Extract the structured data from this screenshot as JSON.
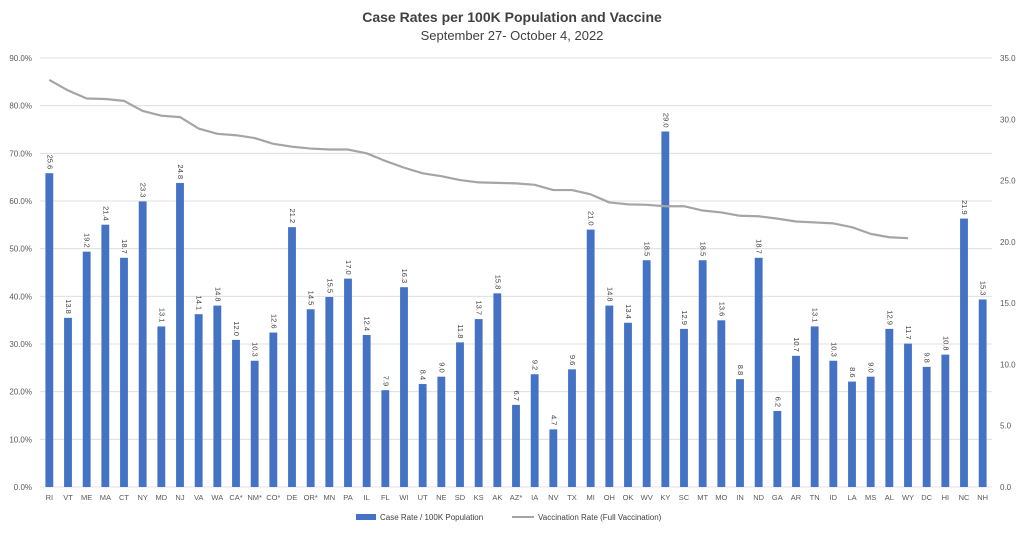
{
  "chart_data": {
    "type": "bar",
    "title": "Case Rates per 100K Population and Vaccine",
    "subtitle": "September 27- October 4, 2022",
    "categories": [
      "RI",
      "VT",
      "ME",
      "MA",
      "CT",
      "NY",
      "MD",
      "NJ",
      "VA",
      "WA",
      "CA*",
      "NM*",
      "CO*",
      "DE",
      "OR*",
      "MN",
      "PA",
      "IL",
      "FL",
      "WI",
      "UT",
      "NE",
      "SD",
      "KS",
      "AK",
      "AZ*",
      "IA",
      "NV",
      "TX",
      "MI",
      "OH",
      "OK",
      "WV",
      "KY",
      "SC",
      "MT",
      "MO",
      "IN",
      "ND",
      "GA",
      "AR",
      "TN",
      "ID",
      "LA",
      "MS",
      "AL",
      "WY",
      "DC",
      "HI",
      "NC",
      "NH"
    ],
    "y_left": {
      "min": 0,
      "max": 0.9,
      "step": 0.1,
      "format": "percent"
    },
    "y_right": {
      "min": 0,
      "max": 35,
      "step": 5,
      "format": "fixed1"
    },
    "grid": true,
    "legend_position": "bottom",
    "series": [
      {
        "name": "Case Rate / 100K Population",
        "type": "bar",
        "axis": "right",
        "color": "#4472C4",
        "values": [
          25.6,
          13.8,
          19.2,
          21.4,
          18.7,
          23.3,
          13.1,
          24.8,
          14.1,
          14.8,
          12.0,
          10.3,
          12.6,
          21.2,
          14.5,
          15.5,
          17.0,
          12.4,
          7.9,
          16.3,
          8.4,
          9.0,
          11.8,
          13.7,
          15.8,
          6.7,
          9.2,
          4.7,
          9.6,
          21.0,
          14.8,
          13.4,
          18.5,
          29.0,
          12.9,
          18.5,
          13.6,
          8.8,
          18.7,
          6.2,
          10.7,
          13.1,
          10.3,
          8.6,
          9.0,
          12.9,
          11.7,
          9.8,
          10.8,
          21.9,
          15.3
        ]
      },
      {
        "name": "Vaccination Rate (Full Vaccination)",
        "type": "line",
        "axis": "left",
        "color": "#A5A5A5",
        "values": [
          0.854,
          0.832,
          0.815,
          0.814,
          0.81,
          0.789,
          0.779,
          0.776,
          0.752,
          0.741,
          0.738,
          0.732,
          0.72,
          0.714,
          0.71,
          0.708,
          0.708,
          0.7,
          0.684,
          0.67,
          0.658,
          0.652,
          0.644,
          0.639,
          0.638,
          0.637,
          0.634,
          0.623,
          0.623,
          0.614,
          0.597,
          0.593,
          0.592,
          0.589,
          0.589,
          0.58,
          0.576,
          0.569,
          0.568,
          0.563,
          0.557,
          0.555,
          0.553,
          0.545,
          0.531,
          0.524,
          0.522,
          null,
          null,
          null,
          null
        ]
      }
    ]
  }
}
